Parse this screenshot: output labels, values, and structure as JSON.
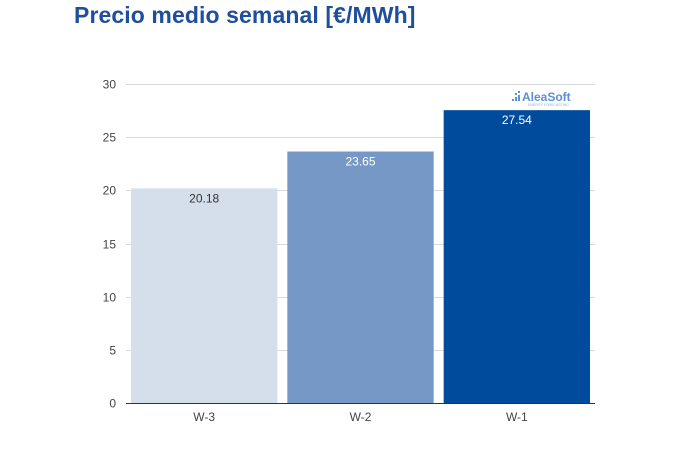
{
  "page": {
    "title": "Precio medio semanal [€/MWh]",
    "watermark": "AleaSoft",
    "watermark_sub": "ENERGY FORECASTING"
  },
  "chart_data": {
    "type": "bar",
    "title": "Precio medio semanal [€/MWh]",
    "categories": [
      "W-3",
      "W-2",
      "W-1"
    ],
    "values": [
      20.18,
      23.65,
      27.54
    ],
    "value_labels": [
      "20.18",
      "23.65",
      "27.54"
    ],
    "bar_colors": [
      "#d5dfeb",
      "#7698c6",
      "#004b9b"
    ],
    "label_colors": [
      "#333333",
      "#ffffff",
      "#ffffff"
    ],
    "xlabel": "",
    "ylabel": "",
    "ylim": [
      0,
      30
    ],
    "yticks": [
      0,
      5,
      10,
      15,
      20,
      25,
      30
    ],
    "grid": true,
    "legend": "none"
  }
}
